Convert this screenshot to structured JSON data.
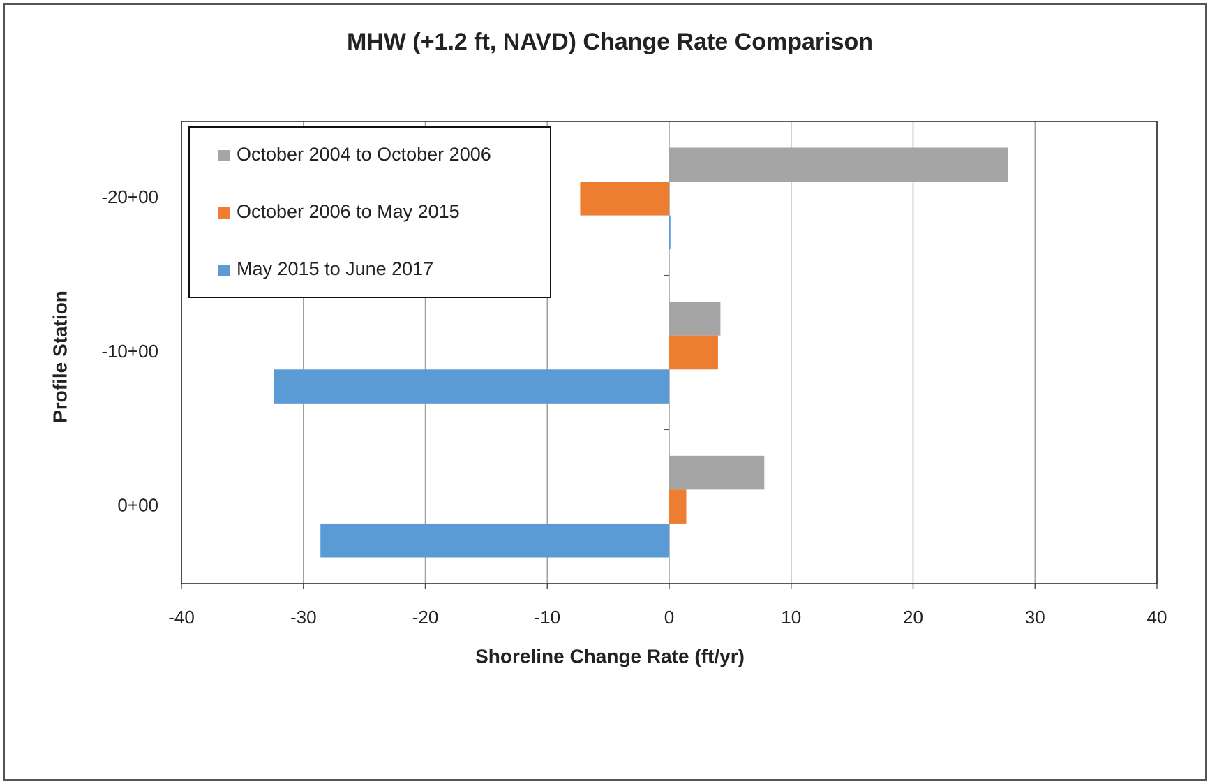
{
  "chart_data": {
    "type": "hbar",
    "title": "MHW (+1.2 ft, NAVD) Change Rate Comparison",
    "x_label": "Shoreline Change Rate (ft/yr)",
    "y_label": "Profile Station",
    "categories": [
      "-20+00",
      "-10+00",
      "0+00"
    ],
    "series": [
      {
        "name": "October 2004 to October 2006",
        "color": "#a5a5a5",
        "values": [
          27.8,
          4.2,
          7.8
        ]
      },
      {
        "name": "October 2006 to May 2015",
        "color": "#ed7d31",
        "values": [
          -7.3,
          4.0,
          1.4
        ]
      },
      {
        "name": "May 2015 to June 2017",
        "color": "#5b9bd5",
        "values": [
          0.1,
          -32.4,
          -28.6
        ]
      }
    ],
    "xlim": [
      -40,
      40
    ],
    "xticks": [
      -40,
      -30,
      -20,
      -10,
      0,
      10,
      20,
      30,
      40
    ],
    "grid": true,
    "legend": "top-left"
  }
}
